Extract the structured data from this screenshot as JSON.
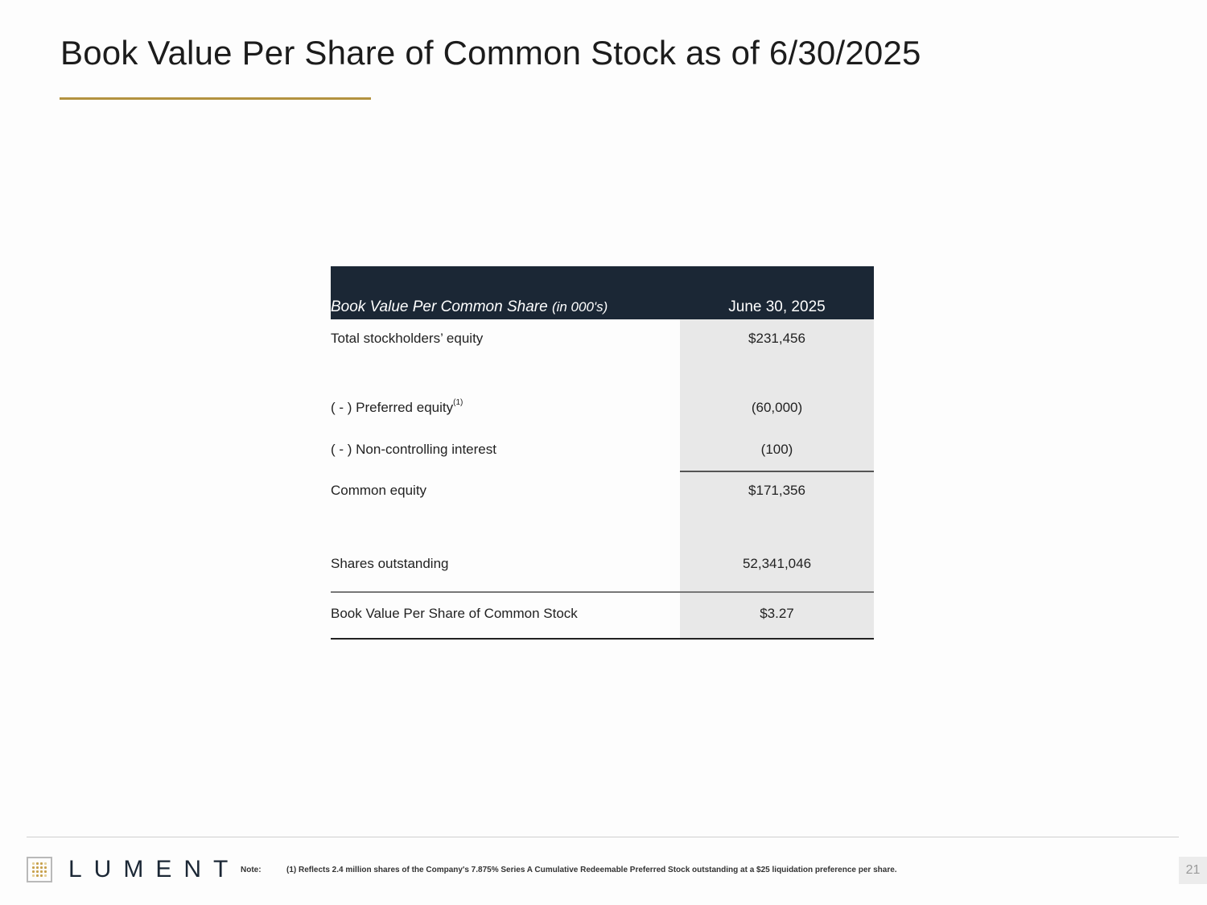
{
  "title": "Book Value Per Share of Common Stock as of 6/30/2025",
  "table": {
    "header_label": "Book Value Per Common Share",
    "header_sublabel": "(in 000's)",
    "header_value": "June 30, 2025",
    "rows": [
      {
        "label": "Total stockholders’ equity",
        "value": "$231,456"
      },
      {
        "label": "( - ) Preferred equity",
        "label_sup": "(1)",
        "value": "(60,000)"
      },
      {
        "label": "( - ) Non-controlling interest",
        "value": "(100)"
      },
      {
        "label": "Common equity",
        "value": "$171,356"
      },
      {
        "label": "Shares outstanding",
        "value": "52,341,046"
      },
      {
        "label": "Book Value Per Share of Common Stock",
        "value": "$3.27"
      }
    ]
  },
  "footer": {
    "logo_text": "LUMENT",
    "note_label": "Note:",
    "note_text": "(1) Reflects 2.4 million shares of the Company's 7.875% Series A Cumulative Redeemable Preferred Stock outstanding at a $25 liquidation preference per share.",
    "page_number": "21"
  },
  "colors": {
    "accent_gold": "#b3923f",
    "header_navy": "#1b2735",
    "value_cell_gray": "#e8e8e8"
  }
}
